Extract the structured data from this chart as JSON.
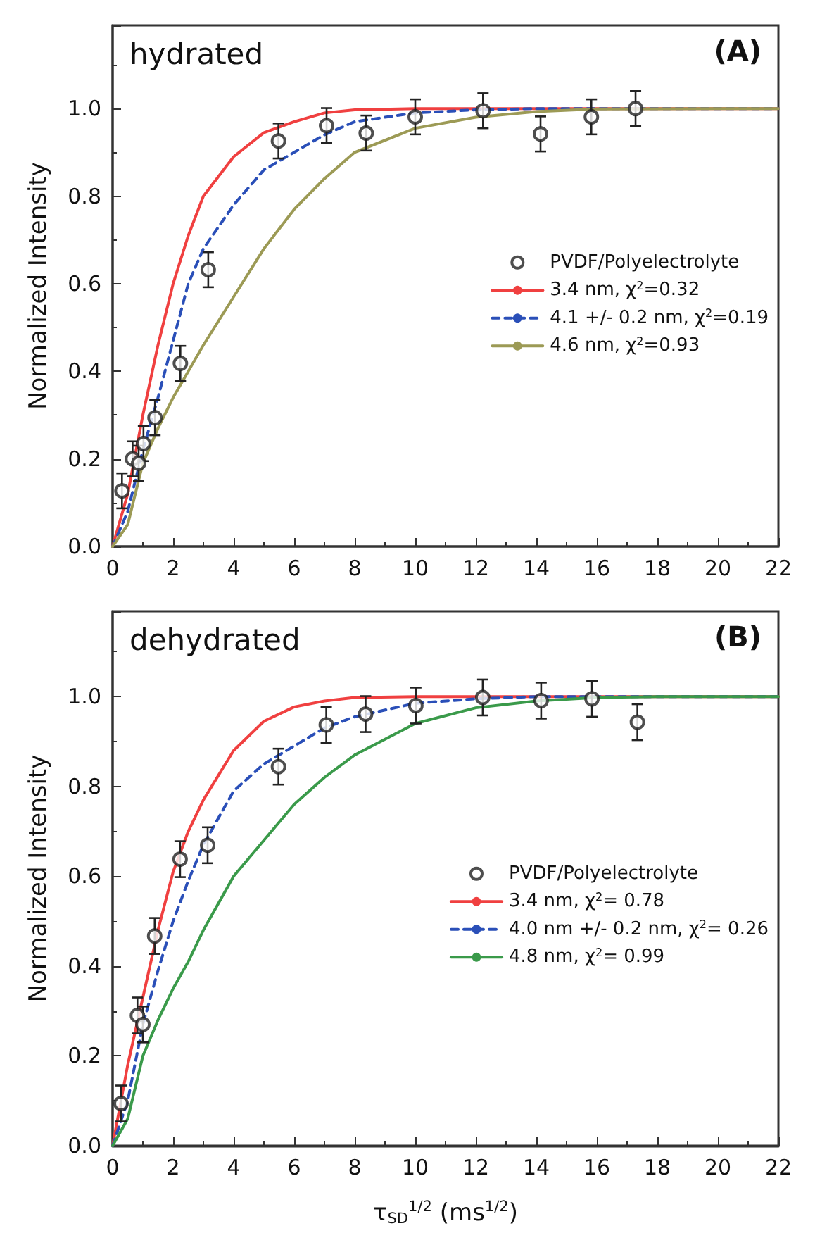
{
  "chart_data": [
    {
      "type": "line",
      "ylabel": "Normalized Intensity",
      "annotations": [
        "hydrated",
        "(A)"
      ],
      "xlim": [
        0,
        22
      ],
      "xticks": [
        0,
        2,
        4,
        6,
        8,
        10,
        12,
        14,
        16,
        18,
        20,
        22
      ],
      "ylim": [
        0,
        1.19
      ],
      "yticks": [
        {
          "value": 0,
          "label": "0.0"
        },
        {
          "value": 0.2,
          "label": "0.2"
        },
        {
          "value": 0.4,
          "label": "0.4"
        },
        {
          "value": 0.6,
          "label": "0.6"
        },
        {
          "value": 0.8,
          "label": "0.8"
        },
        {
          "value": 1.0,
          "label": "1.0"
        }
      ],
      "grid": false,
      "legend": "right",
      "series": [
        {
          "name": "PVDF/Polyelectrolyte",
          "type": "scatter",
          "marker": "circle",
          "color": "#222222",
          "x": [
            0.31,
            0.66,
            0.86,
            1.02,
            1.4,
            2.24,
            3.16,
            5.48,
            7.07,
            8.38,
            10.0,
            12.24,
            14.14,
            15.82,
            17.28
          ],
          "values": [
            0.127,
            0.2,
            0.19,
            0.235,
            0.294,
            0.418,
            0.632,
            0.926,
            0.961,
            0.944,
            0.981,
            0.995,
            0.942,
            0.981,
            1.0
          ],
          "errors": [
            0.04,
            0.04,
            0.04,
            0.04,
            0.04,
            0.04,
            0.04,
            0.04,
            0.04,
            0.04,
            0.04,
            0.04,
            0.04,
            0.04,
            0.04
          ]
        },
        {
          "name": "3.4 nm, χ$^{2}$=0.32",
          "marker": "none",
          "line_style": "solid",
          "color": "#f04040",
          "x": [
            0,
            0.5,
            1,
            1.5,
            2,
            2.5,
            3,
            4,
            5,
            6,
            7,
            8,
            10,
            22
          ],
          "values": [
            0,
            0.12,
            0.3,
            0.46,
            0.6,
            0.71,
            0.8,
            0.89,
            0.945,
            0.97,
            0.99,
            0.997,
            1,
            1
          ]
        },
        {
          "name": "4.1 +/- 0.2 nm, χ$^{2}$=0.19",
          "marker": "none",
          "line_style": "dashed",
          "color": "#2a4fb8",
          "x": [
            0,
            0.5,
            1,
            1.5,
            2,
            2.5,
            3,
            4,
            5,
            6,
            7,
            8,
            10,
            12,
            14,
            22
          ],
          "values": [
            0,
            0.08,
            0.22,
            0.34,
            0.47,
            0.6,
            0.68,
            0.78,
            0.86,
            0.9,
            0.94,
            0.97,
            0.99,
            0.997,
            1,
            1
          ]
        },
        {
          "name": "4.6 nm, χ$^{2}$=0.93",
          "marker": "none",
          "line_style": "solid",
          "color": "#9c9a55",
          "x": [
            0,
            0.5,
            1,
            1.5,
            2,
            2.5,
            3,
            4,
            5,
            6,
            7,
            8,
            10,
            12,
            14,
            16,
            22
          ],
          "values": [
            0,
            0.05,
            0.19,
            0.27,
            0.34,
            0.4,
            0.46,
            0.57,
            0.68,
            0.77,
            0.84,
            0.9,
            0.955,
            0.98,
            0.993,
            0.999,
            1
          ]
        }
      ]
    },
    {
      "type": "line",
      "xlabel": "τ$_{SD}$$^{1/2}$ (ms$^{1/2}$)",
      "ylabel": "Normalized Intensity",
      "annotations": [
        "dehydrated",
        "(B)"
      ],
      "xlim": [
        0,
        22
      ],
      "xticks": [
        0,
        2,
        4,
        6,
        8,
        10,
        12,
        14,
        16,
        18,
        20,
        22
      ],
      "ylim": [
        0,
        1.19
      ],
      "yticks": [
        {
          "value": 0,
          "label": "0.0"
        },
        {
          "value": 0.2,
          "label": "0.2"
        },
        {
          "value": 0.4,
          "label": "0.4"
        },
        {
          "value": 0.6,
          "label": "0.6"
        },
        {
          "value": 0.8,
          "label": "0.8"
        },
        {
          "value": 1.0,
          "label": "1.0"
        }
      ],
      "grid": false,
      "legend": "right",
      "series": [
        {
          "name": "PVDF/Polyelectrolyte",
          "type": "scatter",
          "marker": "circle",
          "color": "#222222",
          "x": [
            0.28,
            0.82,
            1.0,
            1.39,
            2.23,
            3.14,
            5.48,
            7.06,
            8.36,
            10.02,
            12.23,
            14.16,
            15.84,
            17.34
          ],
          "values": [
            0.094,
            0.29,
            0.27,
            0.467,
            0.638,
            0.669,
            0.844,
            0.937,
            0.961,
            0.98,
            0.998,
            0.991,
            0.995,
            0.943
          ],
          "errors": [
            0.04,
            0.04,
            0.04,
            0.04,
            0.04,
            0.04,
            0.04,
            0.04,
            0.04,
            0.04,
            0.04,
            0.04,
            0.04,
            0.04
          ]
        },
        {
          "name": "3.4 nm, χ$^{2}$= 0.78",
          "marker": "none",
          "line_style": "solid",
          "color": "#f04040",
          "x": [
            0,
            0.5,
            1,
            1.5,
            2,
            2.5,
            3,
            4,
            5,
            6,
            7,
            8,
            10,
            22
          ],
          "values": [
            0,
            0.18,
            0.33,
            0.48,
            0.61,
            0.7,
            0.77,
            0.88,
            0.945,
            0.977,
            0.99,
            0.998,
            1,
            1
          ]
        },
        {
          "name": "4.0 nm +/- 0.2 nm, χ$^{2}$= 0.26",
          "marker": "none",
          "line_style": "dashed",
          "color": "#2a4fb8",
          "x": [
            0,
            0.5,
            1,
            1.5,
            2,
            2.5,
            3,
            4,
            5,
            6,
            7,
            8,
            10,
            12,
            14,
            22
          ],
          "values": [
            0,
            0.1,
            0.27,
            0.39,
            0.5,
            0.59,
            0.67,
            0.79,
            0.85,
            0.89,
            0.93,
            0.955,
            0.985,
            0.995,
            1,
            1
          ]
        },
        {
          "name": "4.8 nm, χ$^{2}$= 0.99",
          "marker": "none",
          "line_style": "solid",
          "color": "#3a9a4a",
          "x": [
            0,
            0.5,
            1,
            1.5,
            2,
            2.5,
            3,
            4,
            5,
            6,
            7,
            8,
            10,
            12,
            14,
            16,
            18,
            22
          ],
          "values": [
            0,
            0.06,
            0.2,
            0.28,
            0.35,
            0.41,
            0.48,
            0.6,
            0.68,
            0.76,
            0.82,
            0.87,
            0.94,
            0.975,
            0.99,
            0.998,
            1,
            1
          ]
        }
      ]
    }
  ]
}
